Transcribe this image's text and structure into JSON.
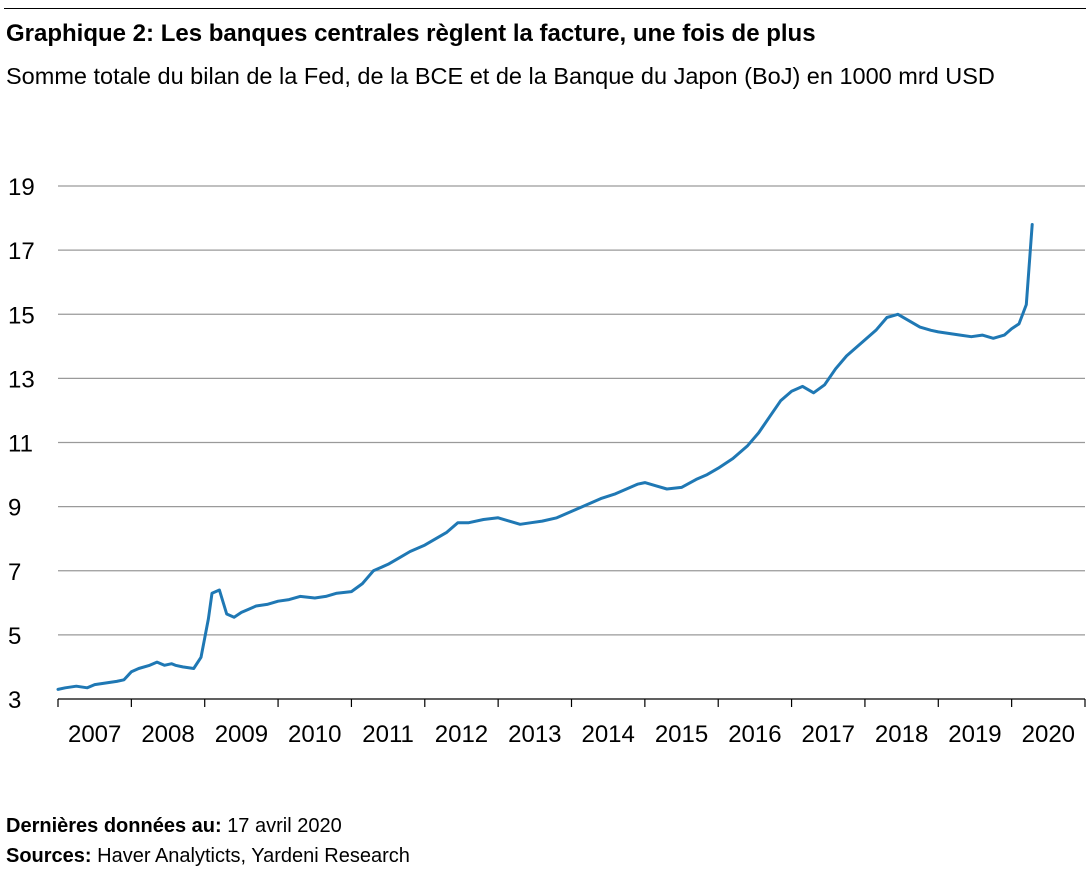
{
  "title": "Graphique 2: Les banques centrales règlent la facture, une fois de plus",
  "subtitle": "Somme totale du bilan de la Fed, de la BCE et de la Banque du Japon (BoJ) en 1000 mrd USD",
  "footer": {
    "last_data_label": "Dernières données au:",
    "last_data_value": "17 avril 2020",
    "sources_label": "Sources:",
    "sources_value": "Haver Analyticts, Yardeni Research"
  },
  "chart_data": {
    "type": "line",
    "title": "Graphique 2: Les banques centrales règlent la facture, une fois de plus",
    "subtitle": "Somme totale du bilan de la Fed, de la BCE et de la Banque du Japon (BoJ) en 1000 mrd USD",
    "xlabel": "",
    "ylabel": "",
    "ylim": [
      3,
      19
    ],
    "xlim": [
      2007.0,
      2021.0
    ],
    "yticks": [
      3,
      5,
      7,
      9,
      11,
      13,
      15,
      17,
      19
    ],
    "xtick_labels": [
      "2007",
      "2008",
      "2009",
      "2010",
      "2011",
      "2012",
      "2013",
      "2014",
      "2015",
      "2016",
      "2017",
      "2018",
      "2019",
      "2020"
    ],
    "grid": "horizontal",
    "legend": "none",
    "line_color": "#1f78b4",
    "series": [
      {
        "x": [
          2007.0,
          2007.1,
          2007.25,
          2007.4,
          2007.5,
          2007.65,
          2007.8,
          2007.9,
          2008.0,
          2008.1,
          2008.25,
          2008.35,
          2008.45,
          2008.55,
          2008.6,
          2008.7,
          2008.85,
          2008.95,
          2009.0,
          2009.05,
          2009.1,
          2009.2,
          2009.3,
          2009.4,
          2009.5,
          2009.6,
          2009.7,
          2009.85,
          2010.0,
          2010.15,
          2010.3,
          2010.5,
          2010.65,
          2010.8,
          2011.0,
          2011.15,
          2011.3,
          2011.5,
          2011.65,
          2011.8,
          2012.0,
          2012.15,
          2012.3,
          2012.45,
          2012.6,
          2012.8,
          2013.0,
          2013.15,
          2013.3,
          2013.45,
          2013.6,
          2013.8,
          2014.0,
          2014.2,
          2014.4,
          2014.6,
          2014.75,
          2014.9,
          2015.0,
          2015.15,
          2015.3,
          2015.5,
          2015.7,
          2015.85,
          2016.0,
          2016.2,
          2016.4,
          2016.55,
          2016.7,
          2016.85,
          2017.0,
          2017.15,
          2017.3,
          2017.45,
          2017.6,
          2017.75,
          2017.9,
          2018.0,
          2018.15,
          2018.3,
          2018.45,
          2018.6,
          2018.75,
          2018.9,
          2019.0,
          2019.15,
          2019.3,
          2019.45,
          2019.6,
          2019.75,
          2019.9,
          2020.0,
          2020.1,
          2020.2,
          2020.28
        ],
        "y": [
          3.3,
          3.35,
          3.4,
          3.35,
          3.45,
          3.5,
          3.55,
          3.6,
          3.85,
          3.95,
          4.05,
          4.15,
          4.05,
          4.1,
          4.05,
          4.0,
          3.95,
          4.3,
          4.9,
          5.5,
          6.3,
          6.4,
          5.65,
          5.55,
          5.7,
          5.8,
          5.9,
          5.95,
          6.05,
          6.1,
          6.2,
          6.15,
          6.2,
          6.3,
          6.35,
          6.6,
          7.0,
          7.2,
          7.4,
          7.6,
          7.8,
          8.0,
          8.2,
          8.5,
          8.5,
          8.6,
          8.65,
          8.55,
          8.45,
          8.5,
          8.55,
          8.65,
          8.85,
          9.05,
          9.25,
          9.4,
          9.55,
          9.7,
          9.75,
          9.65,
          9.55,
          9.6,
          9.85,
          10.0,
          10.2,
          10.5,
          10.9,
          11.3,
          11.8,
          12.3,
          12.6,
          12.75,
          12.55,
          12.8,
          13.3,
          13.7,
          14.0,
          14.2,
          14.5,
          14.9,
          15.0,
          14.8,
          14.6,
          14.5,
          14.45,
          14.4,
          14.35,
          14.3,
          14.35,
          14.25,
          14.35,
          14.55,
          14.7,
          15.3,
          17.8
        ]
      }
    ]
  }
}
